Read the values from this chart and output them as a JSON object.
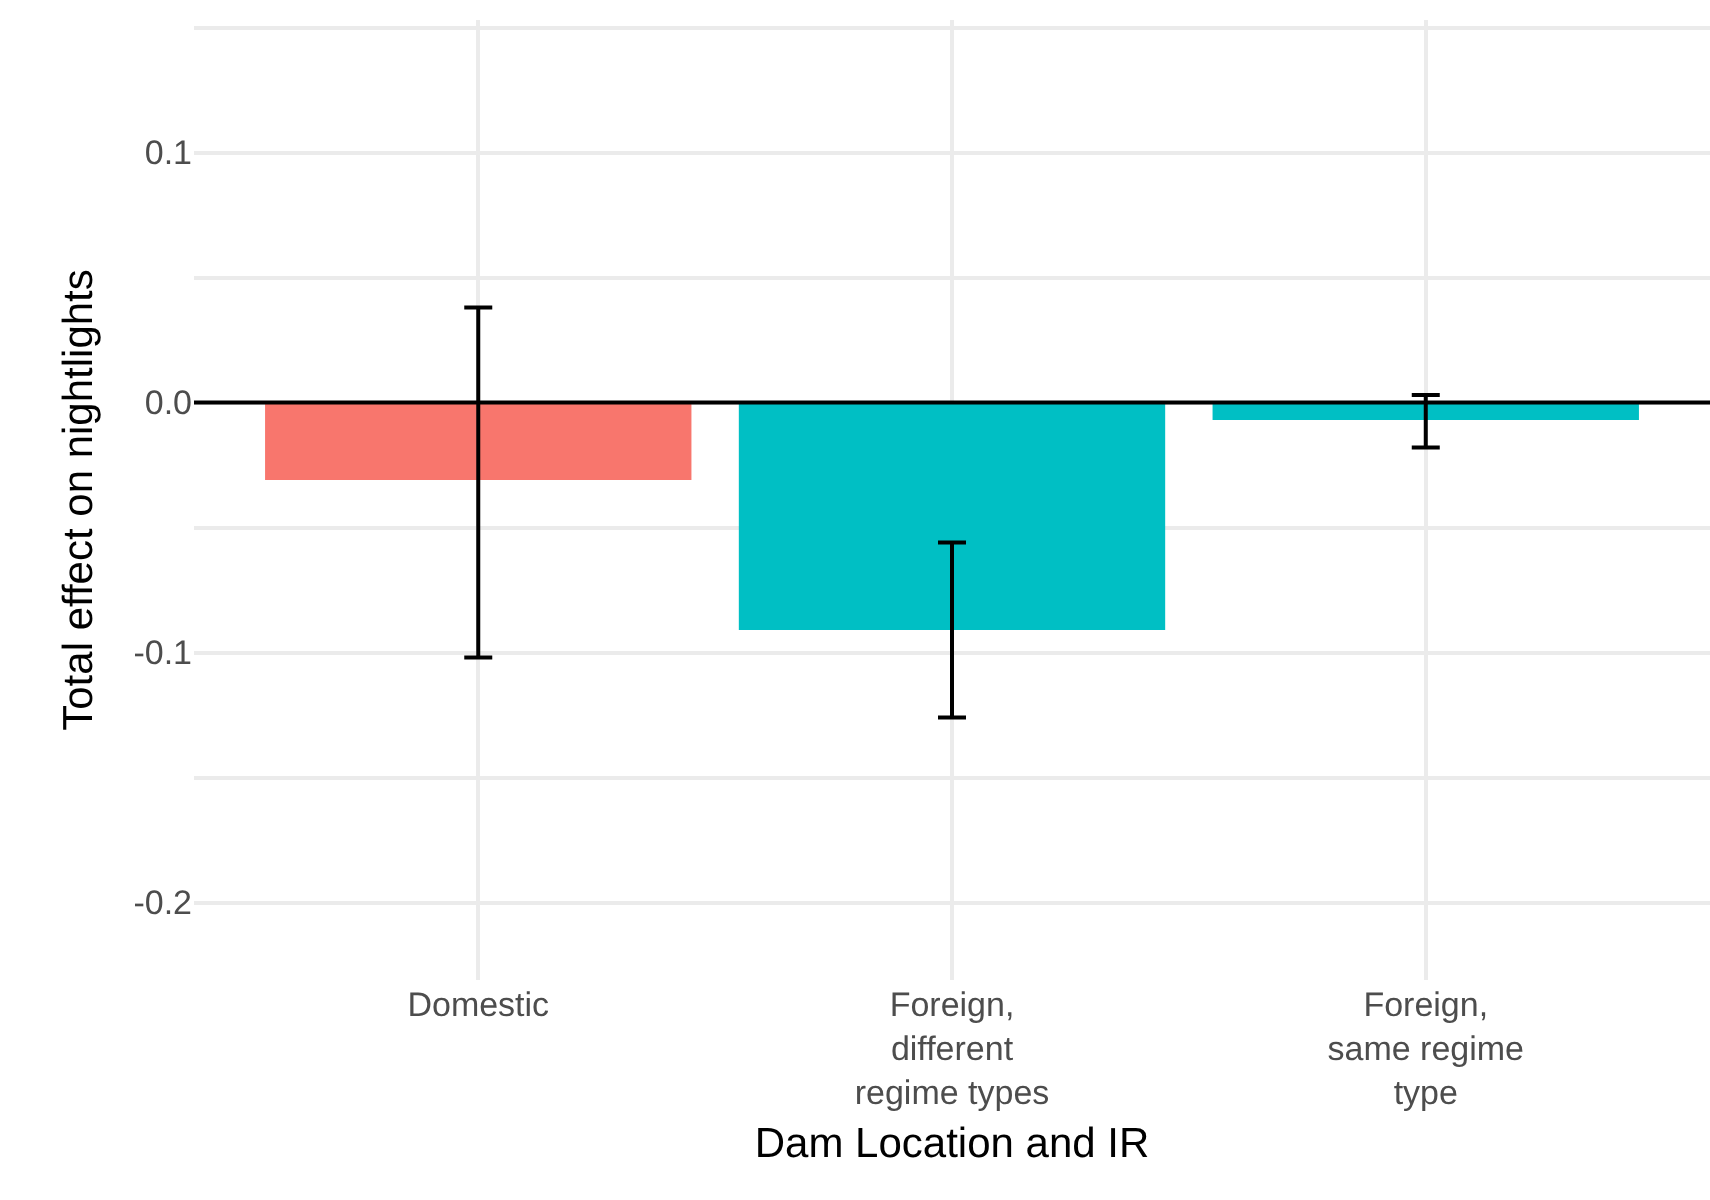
{
  "chart_data": {
    "type": "bar",
    "xlabel": "Dam Location and IR",
    "ylabel": "Total effect on nightlights",
    "categories": [
      "Domestic",
      "Foreign,\ndifferent\nregime types",
      "Foreign,\nsame regime\ntype"
    ],
    "values": [
      -0.031,
      -0.091,
      -0.007
    ],
    "colors": [
      "#f8766d",
      "#00bfc4",
      "#00bfc4"
    ],
    "errors": [
      [
        -0.102,
        0.038
      ],
      [
        -0.126,
        -0.056
      ],
      [
        -0.018,
        0.003
      ]
    ],
    "ylim": [
      -0.231,
      0.153
    ],
    "yticks": [
      {
        "value": -0.2,
        "label": "-0.2"
      },
      {
        "value": -0.15,
        "label": null
      },
      {
        "value": -0.1,
        "label": "-0.1"
      },
      {
        "value": -0.05,
        "label": null
      },
      {
        "value": 0,
        "label": "0.0"
      },
      {
        "value": 0.05,
        "label": null
      },
      {
        "value": 0.1,
        "label": "0.1"
      },
      {
        "value": 0.15,
        "label": null
      }
    ],
    "ref_lines": [
      {
        "axis": "y",
        "value": 0,
        "color": "#000000"
      }
    ],
    "grid": true,
    "legend": false
  }
}
